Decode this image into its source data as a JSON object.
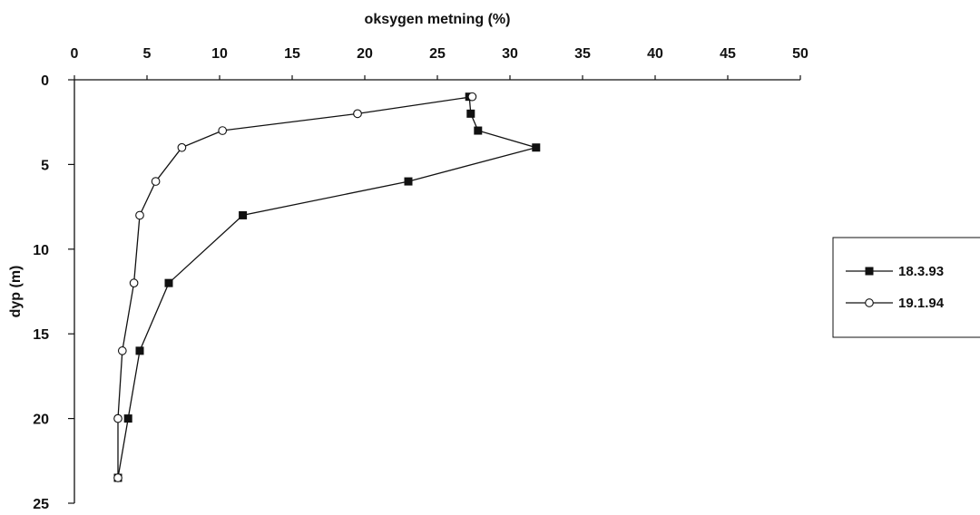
{
  "chart_data": {
    "type": "line",
    "title": "",
    "xlabel": "oksygen metning (%)",
    "ylabel": "dyp (m)",
    "x_axis_position": "top",
    "y_axis_inverted": true,
    "xlim": [
      0,
      50
    ],
    "ylim": [
      0,
      25
    ],
    "x_ticks": [
      0,
      5,
      10,
      15,
      20,
      25,
      30,
      35,
      40,
      45,
      50
    ],
    "y_ticks": [
      0,
      5,
      10,
      15,
      20,
      25
    ],
    "grid": false,
    "legend_position": "right",
    "series": [
      {
        "name": "18.3.93",
        "marker": "filled-square",
        "color": "#111111",
        "points": [
          {
            "x": 27.2,
            "y": 1
          },
          {
            "x": 27.3,
            "y": 2
          },
          {
            "x": 27.8,
            "y": 3
          },
          {
            "x": 31.8,
            "y": 4
          },
          {
            "x": 23.0,
            "y": 6
          },
          {
            "x": 11.6,
            "y": 8
          },
          {
            "x": 6.5,
            "y": 12
          },
          {
            "x": 4.5,
            "y": 16
          },
          {
            "x": 3.7,
            "y": 20
          },
          {
            "x": 3.0,
            "y": 23.5
          }
        ]
      },
      {
        "name": "19.1.94",
        "marker": "open-circle",
        "color": "#111111",
        "points": [
          {
            "x": 27.4,
            "y": 1
          },
          {
            "x": 19.5,
            "y": 2
          },
          {
            "x": 10.2,
            "y": 3
          },
          {
            "x": 7.4,
            "y": 4
          },
          {
            "x": 5.6,
            "y": 6
          },
          {
            "x": 4.5,
            "y": 8
          },
          {
            "x": 4.1,
            "y": 12
          },
          {
            "x": 3.3,
            "y": 16
          },
          {
            "x": 3.0,
            "y": 20
          },
          {
            "x": 3.0,
            "y": 23.5
          }
        ]
      }
    ]
  }
}
